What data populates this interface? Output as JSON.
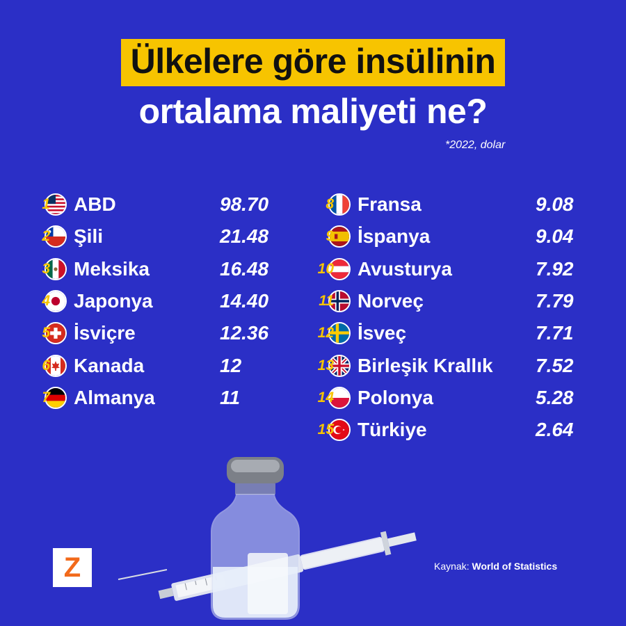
{
  "title_line1": "Ülkelere göre insülinin",
  "title_line2": "ortalama maliyeti ne?",
  "subtitle": "*2022, dolar",
  "source_label": "Kaynak:",
  "source_name": "World of Statistics",
  "logo_letter": "Z",
  "colors": {
    "background": "#2b2fc6",
    "highlight": "#f7c400",
    "text": "#ffffff",
    "logo": "#f26a1b"
  },
  "chart_data": {
    "type": "table",
    "title": "Ülkelere göre insülinin ortalama maliyeti ne?",
    "subtitle": "*2022, dolar",
    "rows": [
      {
        "rank": "1",
        "country": "ABD",
        "value": "98.70",
        "flag": "usa-flag-icon"
      },
      {
        "rank": "2",
        "country": "Şili",
        "value": "21.48",
        "flag": "chile-flag-icon"
      },
      {
        "rank": "3",
        "country": "Meksika",
        "value": "16.48",
        "flag": "mexico-flag-icon"
      },
      {
        "rank": "4",
        "country": "Japonya",
        "value": "14.40",
        "flag": "japan-flag-icon"
      },
      {
        "rank": "5",
        "country": "İsviçre",
        "value": "12.36",
        "flag": "switzerland-flag-icon"
      },
      {
        "rank": "6",
        "country": "Kanada",
        "value": "12",
        "flag": "canada-flag-icon"
      },
      {
        "rank": "7",
        "country": "Almanya",
        "value": "11",
        "flag": "germany-flag-icon"
      },
      {
        "rank": "8",
        "country": "Fransa",
        "value": "9.08",
        "flag": "france-flag-icon"
      },
      {
        "rank": "9",
        "country": "İspanya",
        "value": "9.04",
        "flag": "spain-flag-icon"
      },
      {
        "rank": "10",
        "country": "Avusturya",
        "value": "7.92",
        "flag": "austria-flag-icon"
      },
      {
        "rank": "11",
        "country": "Norveç",
        "value": "7.79",
        "flag": "norway-flag-icon"
      },
      {
        "rank": "12",
        "country": "İsveç",
        "value": "7.71",
        "flag": "sweden-flag-icon"
      },
      {
        "rank": "13",
        "country": "Birleşik Krallık",
        "value": "7.52",
        "flag": "uk-flag-icon"
      },
      {
        "rank": "14",
        "country": "Polonya",
        "value": "5.28",
        "flag": "poland-flag-icon"
      },
      {
        "rank": "15",
        "country": "Türkiye",
        "value": "2.64",
        "flag": "turkey-flag-icon"
      }
    ]
  }
}
